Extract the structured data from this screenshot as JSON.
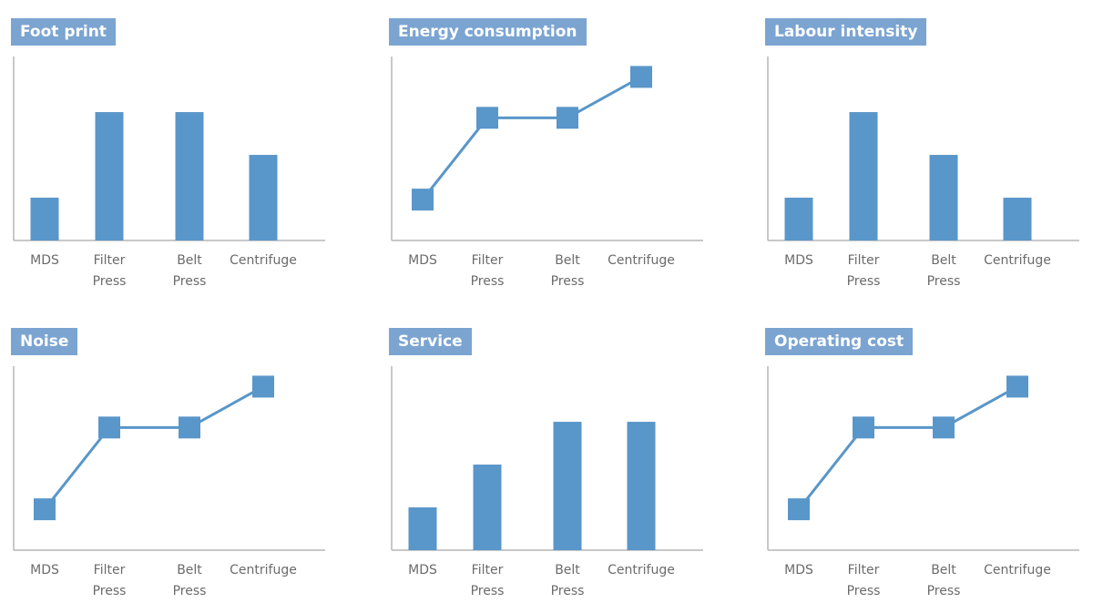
{
  "chart_data": [
    {
      "type": "bar",
      "title": "Foot print",
      "categories": [
        "MDS",
        "Filter Press",
        "Belt Press",
        "Centrifuge"
      ],
      "values": [
        1,
        3,
        3,
        2
      ],
      "ylim": [
        0,
        4.3
      ],
      "grid": false
    },
    {
      "type": "line",
      "title": "Energy consumption",
      "categories": [
        "MDS",
        "Filter Press",
        "Belt Press",
        "Centrifuge"
      ],
      "values": [
        1,
        3,
        3,
        4
      ],
      "ylim": [
        0,
        4.5
      ],
      "grid": false
    },
    {
      "type": "bar",
      "title": "Labour intensity",
      "categories": [
        "MDS",
        "Filter Press",
        "Belt Press",
        "Centrifuge"
      ],
      "values": [
        1,
        3,
        2,
        1
      ],
      "ylim": [
        0,
        4.3
      ],
      "grid": false
    },
    {
      "type": "line",
      "title": "Noise",
      "categories": [
        "MDS",
        "Filter Press",
        "Belt Press",
        "Centrifuge"
      ],
      "values": [
        1,
        3,
        3,
        4
      ],
      "ylim": [
        0,
        4.5
      ],
      "grid": false
    },
    {
      "type": "bar",
      "title": "Service",
      "categories": [
        "MDS",
        "Filter Press",
        "Belt Press",
        "Centrifuge"
      ],
      "values": [
        1,
        2,
        3,
        3
      ],
      "ylim": [
        0,
        4.3
      ],
      "grid": false
    },
    {
      "type": "line",
      "title": "Operating cost",
      "categories": [
        "MDS",
        "Filter Press",
        "Belt Press",
        "Centrifuge"
      ],
      "values": [
        1,
        3,
        3,
        4
      ],
      "ylim": [
        0,
        4.5
      ],
      "grid": false
    }
  ],
  "colors": {
    "title_background": "#7ba4d1",
    "series": "#5996c9",
    "axis": "#b5b5b5",
    "tick_text": "#6b6b6b"
  }
}
